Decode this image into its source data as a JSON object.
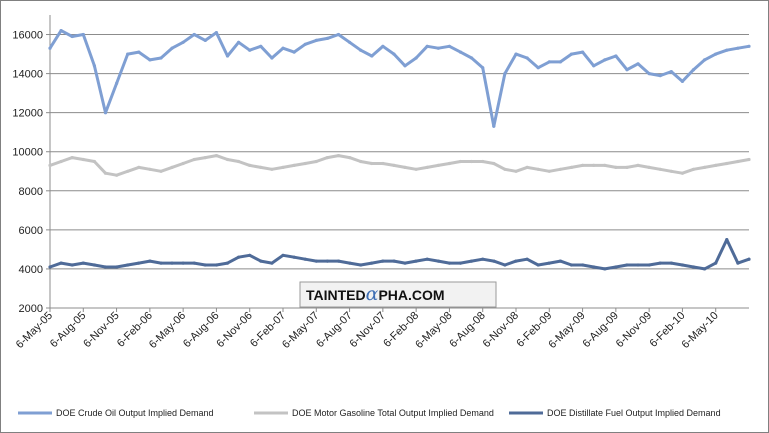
{
  "chart_data": {
    "type": "line",
    "title": "",
    "xlabel": "",
    "ylabel": "",
    "ylim": [
      2000,
      17000
    ],
    "y_ticks": [
      2000,
      4000,
      6000,
      8000,
      10000,
      12000,
      14000,
      16000
    ],
    "y_tick_labels": [
      "2000",
      "4000",
      "6000",
      "8000",
      "10000",
      "12000",
      "14000",
      "16000"
    ],
    "x_tick_labels": [
      "6-May-05",
      "6-Aug-05",
      "6-Nov-05",
      "6-Feb-06",
      "6-May-06",
      "6-Aug-06",
      "6-Nov-06",
      "6-Feb-07",
      "6-May-07",
      "6-Aug-07",
      "6-Nov-07",
      "6-Feb-08",
      "6-May-08",
      "6-Aug-08",
      "6-Nov-08",
      "6-Feb-09",
      "6-May-09",
      "6-Aug-09",
      "6-Nov-09",
      "6-Feb-10",
      "6-May-10"
    ],
    "grid": "horizontal",
    "legend_position": "bottom",
    "x": [
      "6-May-05",
      "6-Jun-05",
      "6-Jul-05",
      "6-Aug-05",
      "6-Sep-05",
      "6-Oct-05",
      "6-Nov-05",
      "6-Dec-05",
      "6-Jan-06",
      "6-Feb-06",
      "6-Mar-06",
      "6-Apr-06",
      "6-May-06",
      "6-Jun-06",
      "6-Jul-06",
      "6-Aug-06",
      "6-Sep-06",
      "6-Oct-06",
      "6-Nov-06",
      "6-Dec-06",
      "6-Jan-07",
      "6-Feb-07",
      "6-Mar-07",
      "6-Apr-07",
      "6-May-07",
      "6-Jun-07",
      "6-Jul-07",
      "6-Aug-07",
      "6-Sep-07",
      "6-Oct-07",
      "6-Nov-07",
      "6-Dec-07",
      "6-Jan-08",
      "6-Feb-08",
      "6-Mar-08",
      "6-Apr-08",
      "6-May-08",
      "6-Jun-08",
      "6-Jul-08",
      "6-Aug-08",
      "6-Sep-08",
      "6-Oct-08",
      "6-Nov-08",
      "6-Dec-08",
      "6-Jan-09",
      "6-Feb-09",
      "6-Mar-09",
      "6-Apr-09",
      "6-May-09",
      "6-Jun-09",
      "6-Jul-09",
      "6-Aug-09",
      "6-Sep-09",
      "6-Oct-09",
      "6-Nov-09",
      "6-Dec-09",
      "6-Jan-10",
      "6-Feb-10",
      "6-Mar-10",
      "6-Apr-10",
      "6-May-10",
      "6-Jun-10",
      "6-Jul-10",
      "6-Aug-10"
    ],
    "series": [
      {
        "name": "DOE Crude Oil Output Implied Demand",
        "color": "#7f9fd3",
        "values": [
          15300,
          16200,
          15900,
          16000,
          14400,
          12000,
          13500,
          15000,
          15100,
          14700,
          14800,
          15300,
          15600,
          16000,
          15700,
          16100,
          14900,
          15600,
          15200,
          15400,
          14800,
          15300,
          15100,
          15500,
          15700,
          15800,
          16000,
          15600,
          15200,
          14900,
          15400,
          15000,
          14400,
          14800,
          15400,
          15300,
          15400,
          15100,
          14800,
          14300,
          11300,
          14000,
          15000,
          14800,
          14300,
          14600,
          14600,
          15000,
          15100,
          14400,
          14700,
          14900,
          14200,
          14500,
          14000,
          13900,
          14100,
          13600,
          14200,
          14700,
          15000,
          15200,
          15300,
          15400
        ]
      },
      {
        "name": "DOE Motor Gasoline Total Output Implied Demand",
        "color": "#c3c3c3",
        "values": [
          9300,
          9500,
          9700,
          9600,
          9500,
          8900,
          8800,
          9000,
          9200,
          9100,
          9000,
          9200,
          9400,
          9600,
          9700,
          9800,
          9600,
          9500,
          9300,
          9200,
          9100,
          9200,
          9300,
          9400,
          9500,
          9700,
          9800,
          9700,
          9500,
          9400,
          9400,
          9300,
          9200,
          9100,
          9200,
          9300,
          9400,
          9500,
          9500,
          9500,
          9400,
          9100,
          9000,
          9200,
          9100,
          9000,
          9100,
          9200,
          9300,
          9300,
          9300,
          9200,
          9200,
          9300,
          9200,
          9100,
          9000,
          8900,
          9100,
          9200,
          9300,
          9400,
          9500,
          9600
        ]
      },
      {
        "name": "DOE Distillate Fuel Output Implied Demand",
        "color": "#4f6b98",
        "values": [
          4100,
          4300,
          4200,
          4300,
          4200,
          4100,
          4100,
          4200,
          4300,
          4400,
          4300,
          4300,
          4300,
          4300,
          4200,
          4200,
          4300,
          4600,
          4700,
          4400,
          4300,
          4700,
          4600,
          4500,
          4400,
          4400,
          4400,
          4300,
          4200,
          4300,
          4400,
          4400,
          4300,
          4400,
          4500,
          4400,
          4300,
          4300,
          4400,
          4500,
          4400,
          4200,
          4400,
          4500,
          4200,
          4300,
          4400,
          4200,
          4200,
          4100,
          4000,
          4100,
          4200,
          4200,
          4200,
          4300,
          4300,
          4200,
          4100,
          4000,
          4300,
          5500,
          4300,
          4500
        ]
      }
    ]
  },
  "watermark": {
    "part1": "TAINTED",
    "alpha": "α",
    "part2": "PHA.COM"
  }
}
